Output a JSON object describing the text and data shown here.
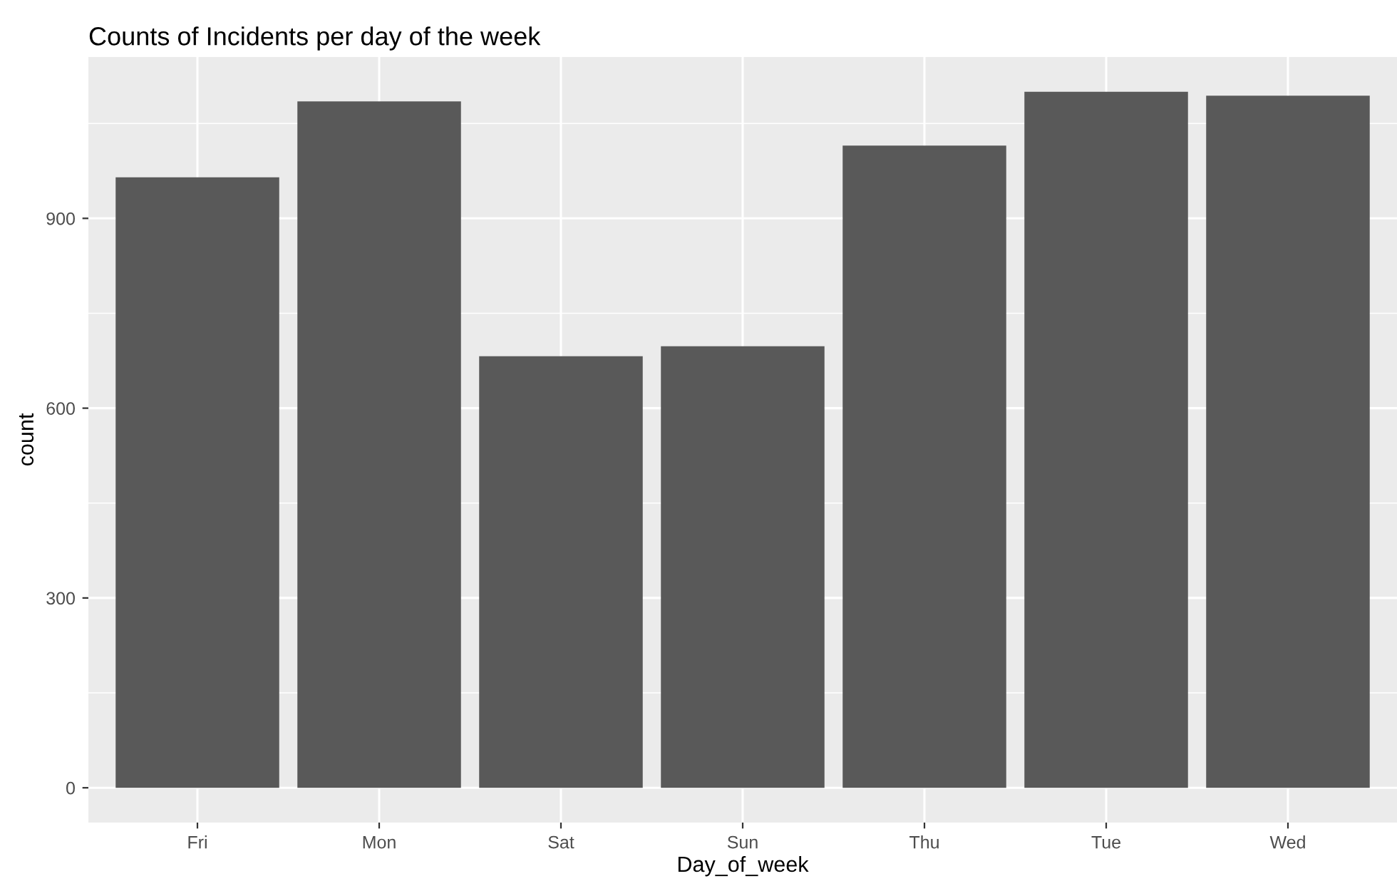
{
  "chart_data": {
    "type": "bar",
    "title": "Counts of Incidents per day of the week",
    "xlabel": "Day_of_week",
    "ylabel": "count",
    "categories": [
      "Fri",
      "Mon",
      "Sat",
      "Sun",
      "Thu",
      "Tue",
      "Wed"
    ],
    "values": [
      965,
      1085,
      682,
      698,
      1015,
      1100,
      1094
    ],
    "color": "#595959",
    "ylim": [
      -55,
      1155
    ],
    "yticks": [
      0,
      300,
      600,
      900
    ],
    "grid": true
  }
}
